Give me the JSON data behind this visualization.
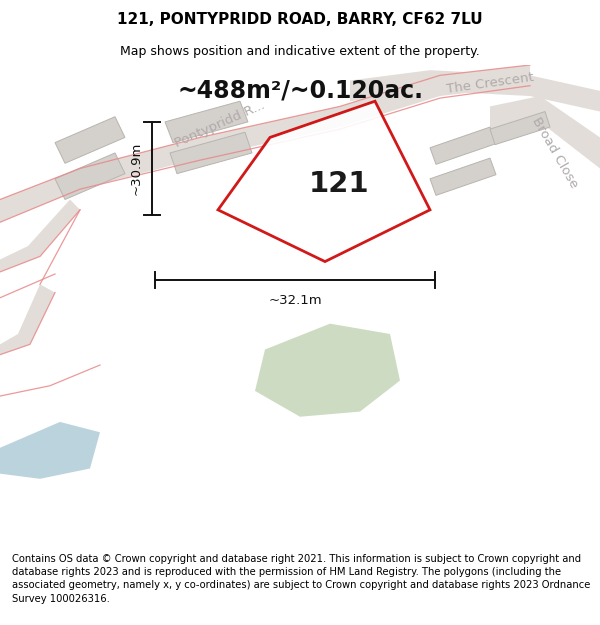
{
  "title": "121, PONTYPRIDD ROAD, BARRY, CF62 7LU",
  "subtitle": "Map shows position and indicative extent of the property.",
  "footer": "Contains OS data © Crown copyright and database right 2021. This information is subject to Crown copyright and database rights 2023 and is reproduced with the permission of HM Land Registry. The polygons (including the associated geometry, namely x, y co-ordinates) are subject to Crown copyright and database rights 2023 Ordnance Survey 100026316.",
  "area_label": "~488m²/~0.120ac.",
  "width_label": "~32.1m",
  "height_label": "~30.9m",
  "plot_number": "121",
  "map_bg": "#f0efed",
  "road_fill": "#e2ddd8",
  "plot_outline_color": "#cc0000",
  "green_area_color": "#c8d8bc",
  "blue_area_color": "#b0ccd8",
  "dim_color": "#111111",
  "road_label_color": "#b0aaaa",
  "building_color": "#d4d0cc",
  "building_edge": "#b8b4b0",
  "red_line_color": "#e88888",
  "title_fontsize": 11,
  "subtitle_fontsize": 9,
  "footer_fontsize": 7.2,
  "area_label_fontsize": 17,
  "plot_number_fontsize": 21,
  "dimension_fontsize": 9.5,
  "road_label_fontsize": 9.5
}
